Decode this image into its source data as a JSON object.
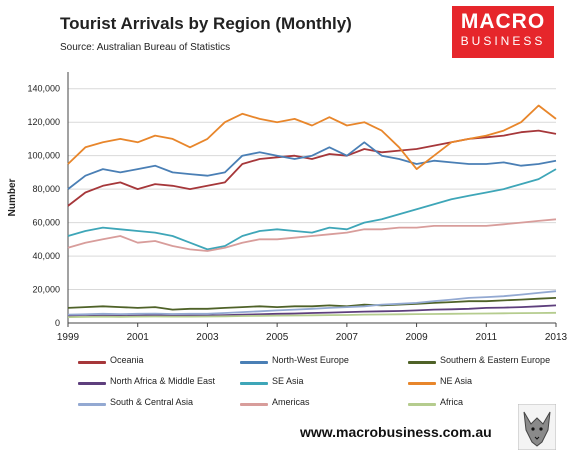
{
  "header": {
    "title": "Tourist Arrivals by Region (Monthly)",
    "source": "Source: Australian Bureau of Statistics"
  },
  "logo": {
    "line1": "MACRO",
    "line2": "BUSINESS"
  },
  "footer": {
    "url": "www.macrobusiness.com.au"
  },
  "chart_data": {
    "type": "line",
    "title": "Tourist Arrivals by Region (Monthly)",
    "ylabel": "Number",
    "xlabel": "",
    "xlim": [
      1999,
      2013
    ],
    "ylim": [
      0,
      150000
    ],
    "x_ticks": [
      "1999",
      "2001",
      "2003",
      "2005",
      "2007",
      "2009",
      "2011",
      "2013"
    ],
    "y_ticks": [
      "0",
      "20,000",
      "40,000",
      "60,000",
      "80,000",
      "100,000",
      "120,000",
      "140,000"
    ],
    "grid": "horizontal",
    "legend_position": "bottom",
    "x": [
      1999.0,
      1999.5,
      2000.0,
      2000.5,
      2001.0,
      2001.5,
      2002.0,
      2002.5,
      2003.0,
      2003.5,
      2004.0,
      2004.5,
      2005.0,
      2005.5,
      2006.0,
      2006.5,
      2007.0,
      2007.5,
      2008.0,
      2008.5,
      2009.0,
      2009.5,
      2010.0,
      2010.5,
      2011.0,
      2011.5,
      2012.0,
      2012.5,
      2013.0
    ],
    "series": [
      {
        "name": "Oceania",
        "color": "#a6373a",
        "values": [
          70000,
          78000,
          82000,
          84000,
          80000,
          83000,
          82000,
          80000,
          82000,
          84000,
          95000,
          98000,
          99000,
          100000,
          98000,
          101000,
          100000,
          104000,
          102000,
          103000,
          104000,
          106000,
          108000,
          110000,
          111000,
          112000,
          114000,
          115000,
          113000
        ]
      },
      {
        "name": "North-West Europe",
        "color": "#4a7fb5",
        "values": [
          80000,
          88000,
          92000,
          90000,
          92000,
          94000,
          90000,
          89000,
          88000,
          90000,
          100000,
          102000,
          100000,
          98000,
          100000,
          105000,
          100000,
          108000,
          100000,
          98000,
          95000,
          97000,
          96000,
          95000,
          95000,
          96000,
          94000,
          95000,
          97000
        ]
      },
      {
        "name": "Southern & Eastern Europe",
        "color": "#4f6228",
        "values": [
          9000,
          9500,
          10000,
          9500,
          9000,
          9500,
          8000,
          8500,
          8500,
          9000,
          9500,
          10000,
          9500,
          10000,
          10000,
          10500,
          10000,
          11000,
          10500,
          11000,
          11500,
          12000,
          12500,
          13000,
          13000,
          13500,
          14000,
          14500,
          15000
        ]
      },
      {
        "name": "North Africa & Middle East",
        "color": "#5e3f7d",
        "values": [
          4000,
          4200,
          4500,
          4300,
          4500,
          4600,
          4400,
          4500,
          4500,
          4700,
          5000,
          5200,
          5500,
          5700,
          6000,
          6200,
          6500,
          6800,
          7000,
          7200,
          7500,
          8000,
          8200,
          8500,
          9000,
          9200,
          9500,
          10000,
          10500
        ]
      },
      {
        "name": "SE Asia",
        "color": "#3ea6b8",
        "values": [
          52000,
          55000,
          57000,
          56000,
          55000,
          54000,
          52000,
          48000,
          44000,
          46000,
          52000,
          55000,
          56000,
          55000,
          54000,
          57000,
          56000,
          60000,
          62000,
          65000,
          68000,
          71000,
          74000,
          76000,
          78000,
          80000,
          83000,
          86000,
          92000
        ]
      },
      {
        "name": "NE Asia",
        "color": "#e8862b",
        "values": [
          95000,
          105000,
          108000,
          110000,
          108000,
          112000,
          110000,
          105000,
          110000,
          120000,
          125000,
          122000,
          120000,
          122000,
          118000,
          123000,
          118000,
          120000,
          115000,
          105000,
          92000,
          100000,
          108000,
          110000,
          112000,
          115000,
          120000,
          130000,
          122000
        ]
      },
      {
        "name": "South & Central Asia",
        "color": "#93a9d2",
        "values": [
          5000,
          5200,
          5500,
          5300,
          5500,
          5600,
          5400,
          5500,
          5500,
          6000,
          6500,
          7000,
          7500,
          8000,
          8500,
          9000,
          9500,
          10000,
          11000,
          11500,
          12000,
          13000,
          14000,
          15000,
          15500,
          16000,
          17000,
          18000,
          19000
        ]
      },
      {
        "name": "Americas",
        "color": "#d89d9b",
        "values": [
          45000,
          48000,
          50000,
          52000,
          48000,
          49000,
          46000,
          44000,
          43000,
          45000,
          48000,
          50000,
          50000,
          51000,
          52000,
          53000,
          54000,
          56000,
          56000,
          57000,
          57000,
          58000,
          58000,
          58000,
          58000,
          59000,
          60000,
          61000,
          62000
        ]
      },
      {
        "name": "Africa",
        "color": "#b5cc8e",
        "values": [
          3500,
          3700,
          3800,
          3700,
          3800,
          3900,
          3800,
          3800,
          3900,
          4000,
          4200,
          4300,
          4400,
          4500,
          4600,
          4700,
          4800,
          5000,
          5100,
          5200,
          5300,
          5400,
          5500,
          5600,
          5700,
          5800,
          5900,
          6000,
          6100
        ]
      }
    ]
  }
}
